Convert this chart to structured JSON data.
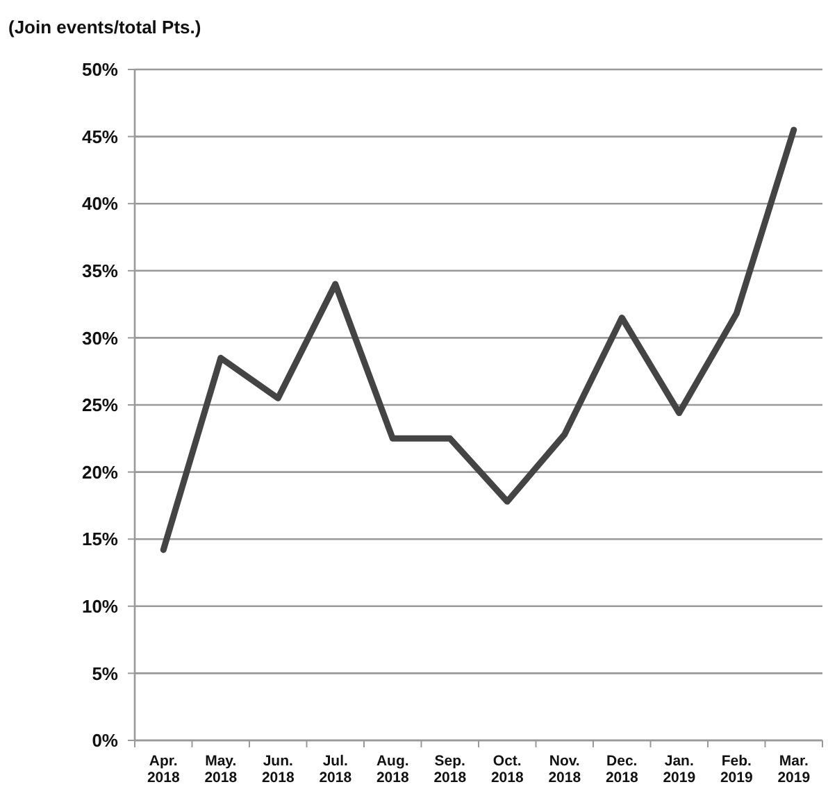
{
  "chart_data": {
    "type": "line",
    "ylabel": "(Join events/total Pts.)",
    "categories": [
      "Apr. 2018",
      "May. 2018",
      "Jun. 2018",
      "Jul. 2018",
      "Aug. 2018",
      "Sep. 2018",
      "Oct. 2018",
      "Nov. 2018",
      "Dec. 2018",
      "Jan. 2019",
      "Feb. 2019",
      "Mar. 2019"
    ],
    "series": [
      {
        "color": "#444444",
        "values": [
          14.2,
          28.5,
          25.5,
          34,
          22.5,
          22.5,
          17.8,
          22.8,
          31.5,
          24.4,
          31.8,
          45.5
        ]
      }
    ],
    "ylim": [
      0,
      50
    ],
    "yticks": [
      {
        "value": 0,
        "label": "0%"
      },
      {
        "value": 5,
        "label": "5%"
      },
      {
        "value": 10,
        "label": "10%"
      },
      {
        "value": 15,
        "label": "15%"
      },
      {
        "value": 20,
        "label": "20%"
      },
      {
        "value": 25,
        "label": "25%"
      },
      {
        "value": 30,
        "label": "30%"
      },
      {
        "value": 35,
        "label": "35%"
      },
      {
        "value": 40,
        "label": "40%"
      },
      {
        "value": 45,
        "label": "45%"
      },
      {
        "value": 50,
        "label": "50%"
      }
    ],
    "grid": "y",
    "marker": "none",
    "line_style": "solid"
  }
}
